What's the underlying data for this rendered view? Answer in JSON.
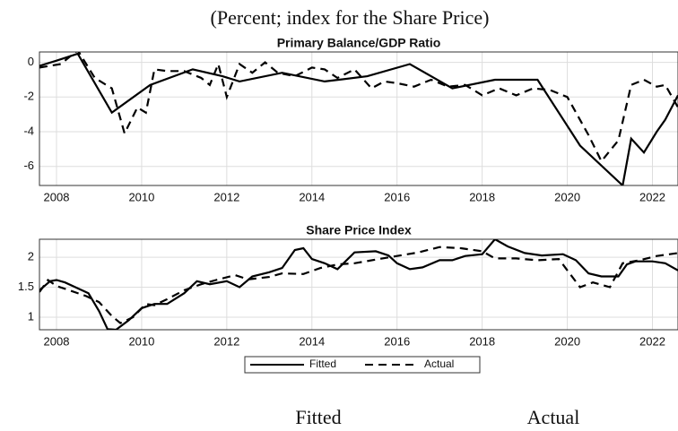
{
  "subtitle": "(Percent; index for the Share Price)",
  "footer_labels": [
    "Fitted",
    "Actual"
  ],
  "chart_data": [
    {
      "type": "line",
      "title": "Primary Balance/GDP Ratio",
      "grid": true,
      "xlim": [
        2007.6,
        2022.6
      ],
      "xticks": [
        2008,
        2010,
        2012,
        2014,
        2016,
        2018,
        2020,
        2022
      ],
      "ylim": [
        -7.1,
        0.6
      ],
      "yticks": [
        0,
        -2,
        -4,
        -6
      ],
      "series": [
        {
          "name": "Fitted",
          "color": "#000000",
          "line_style": "solid",
          "x": [
            2007.6,
            2008.0,
            2008.5,
            2009.3,
            2010.2,
            2011.2,
            2011.9,
            2012.3,
            2013.3,
            2014.3,
            2015.3,
            2016.3,
            2017.3,
            2018.3,
            2019.3,
            2020.3,
            2021.3,
            2021.5,
            2021.8,
            2022.1,
            2022.3,
            2022.6
          ],
          "values": [
            -0.2,
            0.1,
            0.5,
            -2.9,
            -1.3,
            -0.4,
            -0.8,
            -1.1,
            -0.6,
            -1.1,
            -0.8,
            -0.1,
            -1.5,
            -1.0,
            -1.0,
            -4.8,
            -7.1,
            -4.4,
            -5.2,
            -4.0,
            -3.3,
            -1.9
          ]
        },
        {
          "name": "Actual",
          "color": "#000000",
          "line_style": "dashed",
          "x": [
            2007.6,
            2008.1,
            2008.5,
            2008.9,
            2009.3,
            2009.6,
            2009.9,
            2010.1,
            2010.3,
            2010.6,
            2011.0,
            2011.4,
            2011.6,
            2011.8,
            2012.0,
            2012.3,
            2012.6,
            2012.9,
            2013.2,
            2013.6,
            2014.0,
            2014.3,
            2014.6,
            2015.0,
            2015.4,
            2015.7,
            2016.0,
            2016.4,
            2016.8,
            2017.2,
            2017.6,
            2018.0,
            2018.4,
            2018.8,
            2019.2,
            2019.6,
            2020.0,
            2020.5,
            2020.8,
            2021.2,
            2021.5,
            2021.8,
            2022.1,
            2022.3,
            2022.6
          ],
          "values": [
            -0.3,
            -0.1,
            0.7,
            -0.9,
            -1.5,
            -4.1,
            -2.6,
            -2.9,
            -0.4,
            -0.5,
            -0.5,
            -0.9,
            -1.3,
            -0.1,
            -2.0,
            -0.1,
            -0.6,
            0.0,
            -0.6,
            -0.8,
            -0.3,
            -0.4,
            -0.9,
            -0.4,
            -1.5,
            -1.1,
            -1.2,
            -1.4,
            -1.0,
            -1.4,
            -1.3,
            -1.9,
            -1.5,
            -1.9,
            -1.5,
            -1.6,
            -2.0,
            -4.2,
            -5.7,
            -4.5,
            -1.3,
            -1.0,
            -1.4,
            -1.3,
            -2.6
          ]
        }
      ]
    },
    {
      "type": "line",
      "title": "Share Price Index",
      "grid": true,
      "legend": "below",
      "xlim": [
        2007.6,
        2022.6
      ],
      "xticks": [
        2008,
        2010,
        2012,
        2014,
        2016,
        2018,
        2020,
        2022
      ],
      "ylim": [
        0.79,
        2.3
      ],
      "yticks": [
        1,
        1.5,
        2
      ],
      "series": [
        {
          "name": "Fitted",
          "color": "#000000",
          "line_style": "solid",
          "x": [
            2007.6,
            2007.85,
            2008.0,
            2008.2,
            2008.5,
            2008.75,
            2009.0,
            2009.2,
            2009.4,
            2009.7,
            2010.0,
            2010.3,
            2010.6,
            2011.0,
            2011.3,
            2011.6,
            2012.0,
            2012.3,
            2012.6,
            2013.0,
            2013.3,
            2013.6,
            2013.8,
            2014.0,
            2014.3,
            2014.6,
            2015.0,
            2015.5,
            2015.8,
            2016.0,
            2016.3,
            2016.6,
            2017.0,
            2017.3,
            2017.6,
            2018.0,
            2018.3,
            2018.6,
            2019.0,
            2019.4,
            2019.9,
            2020.2,
            2020.5,
            2020.8,
            2021.2,
            2021.4,
            2021.6,
            2022.0,
            2022.3,
            2022.6
          ],
          "values": [
            1.45,
            1.6,
            1.62,
            1.58,
            1.48,
            1.4,
            1.1,
            0.8,
            0.79,
            0.95,
            1.15,
            1.22,
            1.22,
            1.4,
            1.6,
            1.55,
            1.6,
            1.5,
            1.68,
            1.75,
            1.82,
            2.12,
            2.15,
            1.97,
            1.9,
            1.8,
            2.08,
            2.1,
            2.03,
            1.9,
            1.8,
            1.83,
            1.95,
            1.95,
            2.02,
            2.05,
            2.3,
            2.18,
            2.07,
            2.03,
            2.05,
            1.95,
            1.73,
            1.68,
            1.68,
            1.88,
            1.93,
            1.93,
            1.9,
            1.78
          ]
        },
        {
          "name": "Actual",
          "color": "#000000",
          "line_style": "dashed",
          "x": [
            2007.6,
            2007.8,
            2008.0,
            2008.3,
            2008.7,
            2009.0,
            2009.3,
            2009.5,
            2009.8,
            2010.1,
            2010.3,
            2010.6,
            2011.0,
            2011.4,
            2011.8,
            2012.2,
            2012.5,
            2013.0,
            2013.3,
            2013.8,
            2014.2,
            2014.6,
            2015.0,
            2015.5,
            2016.0,
            2016.5,
            2017.0,
            2017.5,
            2018.0,
            2018.3,
            2018.8,
            2019.3,
            2019.8,
            2020.3,
            2020.6,
            2021.0,
            2021.3,
            2021.7,
            2022.1,
            2022.6
          ],
          "values": [
            1.42,
            1.62,
            1.52,
            1.45,
            1.35,
            1.25,
            1.02,
            0.9,
            1.0,
            1.22,
            1.2,
            1.3,
            1.45,
            1.55,
            1.63,
            1.7,
            1.63,
            1.67,
            1.73,
            1.72,
            1.82,
            1.88,
            1.9,
            1.96,
            2.02,
            2.08,
            2.17,
            2.15,
            2.1,
            1.98,
            1.98,
            1.95,
            1.97,
            1.5,
            1.58,
            1.5,
            1.9,
            1.95,
            2.02,
            2.07
          ]
        }
      ]
    }
  ]
}
